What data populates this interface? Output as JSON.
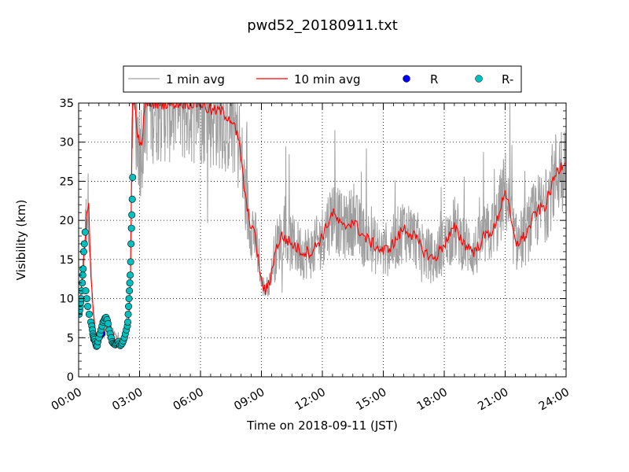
{
  "chart_data": {
    "type": "line",
    "title": "pwd52_20180911.txt",
    "xlabel": "Time on 2018-09-11 (JST)",
    "ylabel": "Visibility (km)",
    "xlim": [
      0,
      24
    ],
    "ylim": [
      0,
      35
    ],
    "x_ticks": [
      "00:00",
      "03:00",
      "06:00",
      "09:00",
      "12:00",
      "15:00",
      "18:00",
      "21:00",
      "24:00"
    ],
    "y_ticks": [
      "0",
      "5",
      "10",
      "15",
      "20",
      "25",
      "30",
      "35"
    ],
    "grid": true,
    "legend_position": "top-center",
    "colors": {
      "one_min": "#a0a0a0",
      "ten_min": "#ff0000",
      "r": "#0000ff",
      "r_minus": "#00bfbf"
    },
    "series": [
      {
        "name": "1 min avg",
        "kind": "line",
        "noisy": true,
        "x": [
          0.0,
          0.1,
          0.2,
          0.3,
          0.4,
          0.5,
          0.6,
          0.75,
          0.85,
          0.95,
          1.0,
          1.2,
          1.5,
          1.8,
          2.0,
          2.2,
          2.4,
          2.55,
          2.65,
          2.75,
          3.0,
          3.1,
          3.3,
          3.5,
          3.8,
          4.0,
          4.5,
          5.0,
          5.5,
          6.0,
          6.5,
          7.0,
          7.5,
          7.8,
          8.0,
          8.2,
          8.4,
          8.6,
          8.8,
          9.0,
          9.2,
          9.4,
          9.6,
          9.8,
          10.0,
          10.5,
          11.0,
          11.5,
          12.0,
          12.5,
          13.0,
          13.5,
          14.0,
          14.5,
          15.0,
          15.5,
          16.0,
          16.5,
          17.0,
          17.5,
          18.0,
          18.5,
          19.0,
          19.5,
          20.0,
          20.5,
          21.0,
          21.5,
          22.0,
          22.5,
          23.0,
          23.5,
          24.0
        ],
        "y": [
          8,
          10,
          13,
          17,
          21,
          22,
          13,
          7,
          5,
          5,
          4.5,
          6,
          7,
          5,
          4.5,
          4.5,
          5,
          12,
          35,
          35,
          29,
          30,
          35,
          35,
          35,
          35,
          35,
          35,
          35,
          35,
          34,
          34,
          33,
          31,
          28,
          23,
          20,
          19,
          16,
          12,
          11,
          12,
          15,
          17,
          18,
          17,
          16,
          16,
          18,
          21,
          19,
          20,
          18,
          17,
          16,
          17,
          19,
          18,
          16,
          15,
          17,
          19,
          17,
          16,
          18,
          19,
          24,
          17,
          18,
          21,
          22,
          26,
          28
        ]
      },
      {
        "name": "10 min avg",
        "kind": "line",
        "x": [
          0.0,
          0.1,
          0.2,
          0.3,
          0.4,
          0.5,
          0.6,
          0.75,
          0.85,
          0.95,
          1.0,
          1.2,
          1.5,
          1.8,
          2.0,
          2.2,
          2.4,
          2.55,
          2.65,
          2.75,
          3.0,
          3.1,
          3.3,
          3.5,
          3.8,
          4.0,
          4.5,
          5.0,
          5.5,
          6.0,
          6.5,
          7.0,
          7.5,
          7.8,
          8.0,
          8.2,
          8.4,
          8.6,
          8.8,
          9.0,
          9.2,
          9.4,
          9.6,
          9.8,
          10.0,
          10.5,
          11.0,
          11.5,
          12.0,
          12.5,
          13.0,
          13.5,
          14.0,
          14.5,
          15.0,
          15.5,
          16.0,
          16.5,
          17.0,
          17.5,
          18.0,
          18.5,
          19.0,
          19.5,
          20.0,
          20.5,
          21.0,
          21.5,
          22.0,
          22.5,
          23.0,
          23.5,
          24.0
        ],
        "y": [
          8,
          10,
          13,
          17,
          21,
          22,
          13,
          7,
          5,
          5,
          4.5,
          6,
          7,
          5,
          4.5,
          4.5,
          5,
          12,
          35,
          35,
          29,
          30,
          35,
          35,
          35,
          35,
          35,
          35,
          35,
          35,
          34,
          34,
          33,
          31,
          28,
          23,
          20,
          19,
          16,
          12,
          11,
          12,
          15,
          17,
          18,
          17,
          16,
          16,
          18,
          21,
          19,
          20,
          18,
          17,
          16,
          17,
          19,
          18,
          16,
          15,
          17,
          19,
          17,
          16,
          18,
          19,
          24,
          17,
          18,
          21,
          22,
          26,
          28
        ]
      },
      {
        "name": "R",
        "kind": "scatter",
        "x": [
          0.75,
          0.85,
          0.95,
          1.05,
          1.15
        ],
        "y": [
          4.8,
          4.5,
          4.7,
          5.2,
          5.5
        ]
      },
      {
        "name": "R-",
        "kind": "scatter",
        "x": [
          0.02,
          0.05,
          0.08,
          0.1,
          0.12,
          0.15,
          0.18,
          0.2,
          0.22,
          0.25,
          0.28,
          0.32,
          0.35,
          0.4,
          0.45,
          0.52,
          0.6,
          0.65,
          0.68,
          0.7,
          0.72,
          0.75,
          0.78,
          0.82,
          0.85,
          0.88,
          0.92,
          0.95,
          1.0,
          1.05,
          1.1,
          1.15,
          1.2,
          1.25,
          1.3,
          1.35,
          1.4,
          1.45,
          1.5,
          1.55,
          1.6,
          1.65,
          1.7,
          1.75,
          1.8,
          1.85,
          1.9,
          1.95,
          2.0,
          2.05,
          2.1,
          2.15,
          2.2,
          2.25,
          2.3,
          2.35,
          2.4,
          2.42,
          2.44,
          2.46,
          2.48,
          2.5,
          2.52,
          2.54,
          2.56,
          2.58,
          2.6,
          2.62,
          2.64,
          2.66
        ],
        "y": [
          8,
          8.5,
          9,
          9.5,
          10,
          11,
          12,
          13,
          13.8,
          16,
          17,
          18.5,
          11,
          10,
          9,
          8,
          7,
          6.5,
          6,
          5.5,
          5.2,
          5,
          4.8,
          4.5,
          4.2,
          3.9,
          4,
          4.5,
          5,
          5.5,
          6,
          6.5,
          7,
          7.2,
          7.5,
          7.6,
          7.3,
          6.8,
          6,
          5.5,
          5,
          4.5,
          4.3,
          4.2,
          4.1,
          4.2,
          4.3,
          4.5,
          4.2,
          4,
          4.1,
          4.3,
          4.6,
          5,
          5.5,
          6,
          6.5,
          7,
          8,
          9,
          10,
          11,
          12,
          13,
          14.7,
          17,
          19,
          20.7,
          22.7,
          25.5
        ]
      }
    ]
  }
}
